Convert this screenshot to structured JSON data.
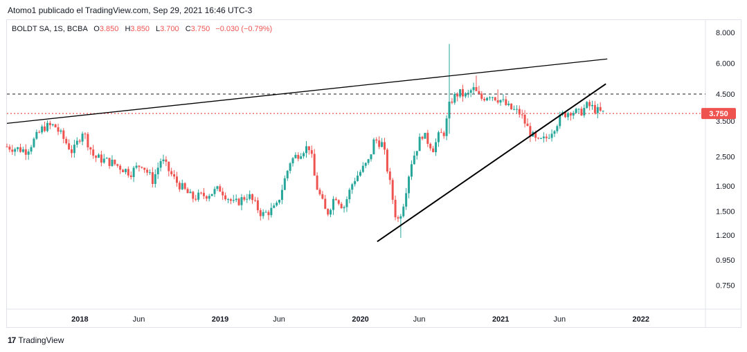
{
  "header": {
    "published_by": "Atomo1 publicado el TradingView.com, Sep 29, 2021 16:46 UTC-3"
  },
  "legend": {
    "symbol": "BOLDT SA, 1S, BCBA",
    "open_label": "O",
    "open": "3.850",
    "high_label": "H",
    "high": "3.850",
    "low_label": "L",
    "low": "3.700",
    "close_label": "C",
    "close": "3.750",
    "change": "−0.030 (−0.79%)"
  },
  "footer": {
    "brand": "TradingView",
    "logo_text": "17"
  },
  "colors": {
    "up": "#26a69a",
    "down": "#ef5350",
    "grid": "#e0e3eb",
    "text": "#131722"
  },
  "chart_data": {
    "type": "candlestick",
    "title": "BOLDT SA, 1S, BCBA",
    "y_scale": "log",
    "ylim": [
      0.6,
      9.0
    ],
    "y_ticks": [
      {
        "value": 8.0,
        "label": "8.000"
      },
      {
        "value": 6.0,
        "label": "6.000"
      },
      {
        "value": 4.5,
        "label": "4.500"
      },
      {
        "value": 3.5,
        "label": "3.500"
      },
      {
        "value": 2.5,
        "label": "2.500"
      },
      {
        "value": 1.9,
        "label": "1.900"
      },
      {
        "value": 1.5,
        "label": "1.500"
      },
      {
        "value": 1.2,
        "label": "1.200"
      },
      {
        "value": 0.95,
        "label": "0.950"
      },
      {
        "value": 0.75,
        "label": "0.750"
      }
    ],
    "xlim": [
      2017.48,
      2022.46
    ],
    "x_ticks": [
      {
        "value": 2018.0,
        "label": "2018"
      },
      {
        "value": 2018.42,
        "label": "Jun"
      },
      {
        "value": 2019.0,
        "label": "2019"
      },
      {
        "value": 2019.42,
        "label": "Jun"
      },
      {
        "value": 2020.0,
        "label": "2020"
      },
      {
        "value": 2020.42,
        "label": "Jun"
      },
      {
        "value": 2021.0,
        "label": "2021"
      },
      {
        "value": 2021.42,
        "label": "Jun"
      },
      {
        "value": 2022.0,
        "label": "2022"
      }
    ],
    "last_price": {
      "value": 3.75,
      "label": "3.750"
    },
    "dashed_level": 4.5,
    "trendlines": [
      {
        "name": "resistance",
        "from": [
          2017.48,
          3.42
        ],
        "to": [
          2021.76,
          6.25
        ]
      },
      {
        "name": "support",
        "from": [
          2020.12,
          1.13
        ],
        "to": [
          2021.75,
          4.95
        ]
      }
    ],
    "anchors": [
      [
        2017.48,
        2.75
      ],
      [
        2017.62,
        2.65
      ],
      [
        2017.74,
        3.3
      ],
      [
        2017.82,
        3.35
      ],
      [
        2017.95,
        2.6
      ],
      [
        2018.02,
        3.2
      ],
      [
        2018.1,
        2.5
      ],
      [
        2018.24,
        2.35
      ],
      [
        2018.36,
        2.15
      ],
      [
        2018.44,
        2.35
      ],
      [
        2018.52,
        2.0
      ],
      [
        2018.58,
        2.45
      ],
      [
        2018.68,
        2.0
      ],
      [
        2018.8,
        1.7
      ],
      [
        2018.9,
        1.75
      ],
      [
        2019.0,
        1.85
      ],
      [
        2019.1,
        1.6
      ],
      [
        2019.2,
        1.75
      ],
      [
        2019.3,
        1.45
      ],
      [
        2019.4,
        1.55
      ],
      [
        2019.5,
        2.4
      ],
      [
        2019.6,
        2.7
      ],
      [
        2019.64,
        2.75
      ],
      [
        2019.68,
        1.95
      ],
      [
        2019.76,
        1.45
      ],
      [
        2019.82,
        1.75
      ],
      [
        2019.88,
        1.55
      ],
      [
        2019.95,
        2.0
      ],
      [
        2020.06,
        2.4
      ],
      [
        2020.1,
        2.95
      ],
      [
        2020.16,
        2.8
      ],
      [
        2020.2,
        2.1
      ],
      [
        2020.26,
        1.35
      ],
      [
        2020.3,
        1.55
      ],
      [
        2020.36,
        2.35
      ],
      [
        2020.44,
        3.1
      ],
      [
        2020.52,
        2.7
      ],
      [
        2020.56,
        3.05
      ],
      [
        2020.6,
        3.15
      ],
      [
        2020.64,
        4.2
      ],
      [
        2020.7,
        4.55
      ],
      [
        2020.76,
        4.4
      ],
      [
        2020.8,
        4.75
      ],
      [
        2020.86,
        4.3
      ],
      [
        2020.92,
        4.5
      ],
      [
        2021.0,
        4.25
      ],
      [
        2021.06,
        3.95
      ],
      [
        2021.14,
        3.75
      ],
      [
        2021.2,
        3.2
      ],
      [
        2021.26,
        2.85
      ],
      [
        2021.32,
        2.95
      ],
      [
        2021.38,
        3.3
      ],
      [
        2021.44,
        3.7
      ],
      [
        2021.5,
        3.85
      ],
      [
        2021.56,
        3.75
      ],
      [
        2021.62,
        4.05
      ],
      [
        2021.66,
        3.95
      ],
      [
        2021.7,
        3.8
      ],
      [
        2021.74,
        3.75
      ]
    ],
    "spikes": [
      {
        "x": 2020.64,
        "high": 7.2,
        "low": 3.1
      },
      {
        "x": 2020.82,
        "high": 5.35
      },
      {
        "x": 2020.98,
        "high": 4.7
      },
      {
        "x": 2020.28,
        "low": 1.17
      }
    ]
  }
}
